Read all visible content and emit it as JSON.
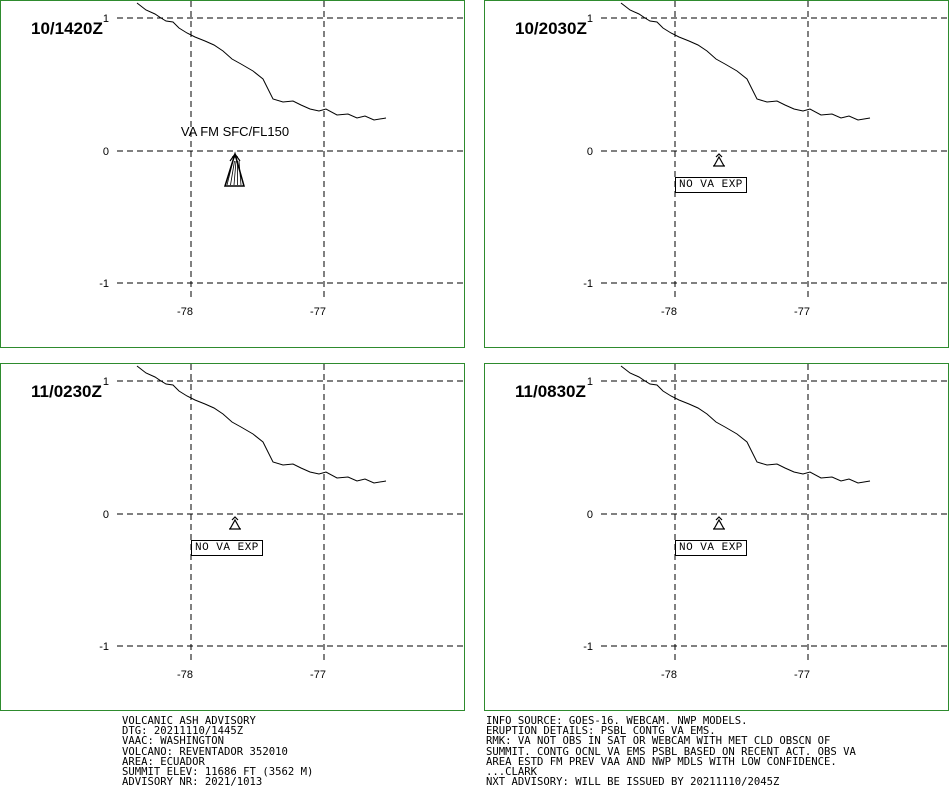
{
  "panels": [
    {
      "time": "10/1420Z",
      "ash_label": "VA FM SFC/FL150",
      "status": ""
    },
    {
      "time": "10/2030Z",
      "ash_label": "",
      "status": "NO VA EXP"
    },
    {
      "time": "11/0230Z",
      "ash_label": "",
      "status": "NO VA EXP"
    },
    {
      "time": "11/0830Z",
      "ash_label": "",
      "status": "NO VA EXP"
    }
  ],
  "axes": {
    "lat_labels": [
      "1",
      "0",
      "-1"
    ],
    "lon_labels": [
      "-78",
      "-77"
    ]
  },
  "advisory_left": [
    "VOLCANIC ASH ADVISORY",
    "DTG: 20211110/1445Z",
    "VAAC: WASHINGTON",
    "VOLCANO: REVENTADOR 352010",
    "AREA: ECUADOR",
    "SUMMIT ELEV: 11686 FT (3562 M)",
    "ADVISORY NR: 2021/1013"
  ],
  "advisory_right": [
    "INFO SOURCE: GOES-16. WEBCAM. NWP MODELS.",
    "ERUPTION DETAILS: PSBL CONTG VA EMS.",
    "RMK: VA NOT OBS IN SAT OR WEBCAM WITH MET CLD OBSCN OF",
    "SUMMIT. CONTG OCNL VA EMS PSBL BASED ON RECENT ACT. OBS VA",
    "AREA ESTD FM PREV VAA AND NWP MDLS WITH LOW CONFIDENCE.",
    "...CLARK",
    "NXT ADVISORY: WILL BE ISSUED BY 20211110/2045Z"
  ],
  "colors": {
    "panel_border": "#2e8b2e",
    "lines": "#000000"
  }
}
